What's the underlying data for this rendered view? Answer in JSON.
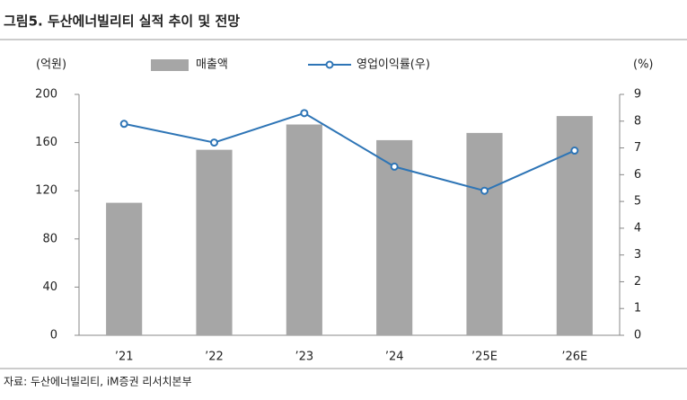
{
  "chart_data": {
    "type": "bar",
    "title": "그림5. 두산에너빌리티 실적 추이 및 전망",
    "ylabel": "(억원)",
    "y2label": "(%)",
    "source": "자료: 두산에너빌리티, iM증권 리서치본부",
    "categories": [
      "’21",
      "’22",
      "’23",
      "’24",
      "’25E",
      "’26E"
    ],
    "series": [
      {
        "name": "매출액",
        "type": "bar",
        "color": "#a6a6a6",
        "values": [
          110,
          154,
          175,
          162,
          168,
          182
        ]
      },
      {
        "name": "영업이익률(우)",
        "type": "line",
        "axis": "y2",
        "color": "#2e75b6",
        "values": [
          7.9,
          7.2,
          8.3,
          6.3,
          5.4,
          6.9
        ]
      }
    ],
    "ylim": [
      0,
      200
    ],
    "yticks": [
      0,
      40,
      80,
      120,
      160,
      200
    ],
    "y2lim": [
      0,
      9
    ],
    "y2ticks": [
      0,
      1,
      2,
      3,
      4,
      5,
      6,
      7,
      8,
      9
    ],
    "grid": false
  }
}
